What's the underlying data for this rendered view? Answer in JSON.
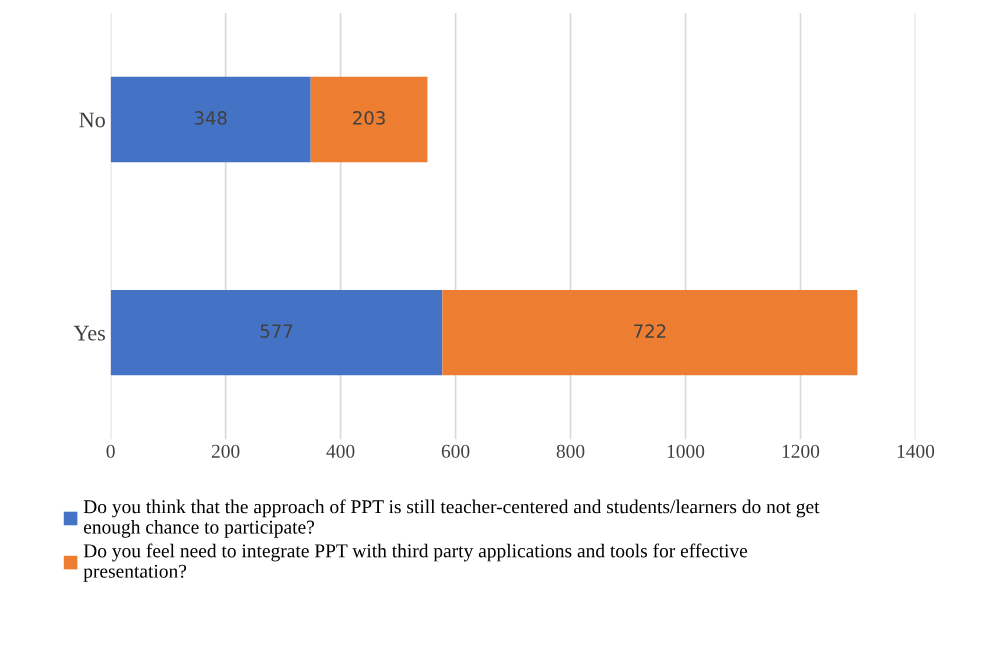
{
  "chart_data": {
    "type": "bar",
    "orientation": "horizontal",
    "stacked": true,
    "categories": [
      "No",
      "Yes"
    ],
    "series": [
      {
        "name": "Do you think that the approach of PPT is still teacher-centered and students/learners do not get enough chance to participate?",
        "color": "#4472c4",
        "values": [
          348,
          577
        ]
      },
      {
        "name": "Do you feel need to integrate PPT with third party applications and tools for effective presentation?",
        "color": "#ed7d31",
        "values": [
          203,
          722
        ]
      }
    ],
    "xlim": [
      0,
      1400
    ],
    "xticks": [
      0,
      200,
      400,
      600,
      800,
      1000,
      1200,
      1400
    ],
    "grid": "x",
    "legend": "bottom",
    "data_labels": true
  }
}
